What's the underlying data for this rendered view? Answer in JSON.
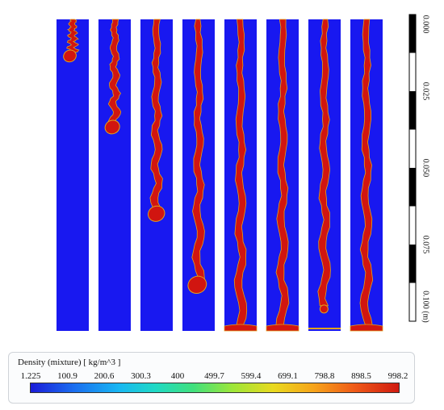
{
  "panels": [
    {
      "tip": 0.13,
      "bulb": "drop"
    },
    {
      "tip": 0.36,
      "bulb": "drop"
    },
    {
      "tip": 0.64,
      "bulb": "drop"
    },
    {
      "tip": 0.87,
      "bulb": "drop"
    },
    {
      "tip": 1.0,
      "bulb": "pool"
    },
    {
      "tip": 1.0,
      "bulb": "pool"
    },
    {
      "tip": 0.94,
      "bulb": "ball"
    },
    {
      "tip": 1.0,
      "bulb": "pool"
    }
  ],
  "ruler": {
    "labels": [
      "0.000",
      "0.025",
      "0.050",
      "0.075",
      "0.100 (m)"
    ]
  },
  "legend": {
    "title": "Density (mixture)  [ kg/m^3 ]",
    "ticks": [
      "1.225",
      "100.9",
      "200.6",
      "300.3",
      "400",
      "499.7",
      "599.4",
      "699.1",
      "798.8",
      "898.5",
      "998.2"
    ]
  },
  "colors": {
    "background_phase": "#1818f0",
    "liquid_phase": "#d11510",
    "interface": "#e0a31c"
  }
}
